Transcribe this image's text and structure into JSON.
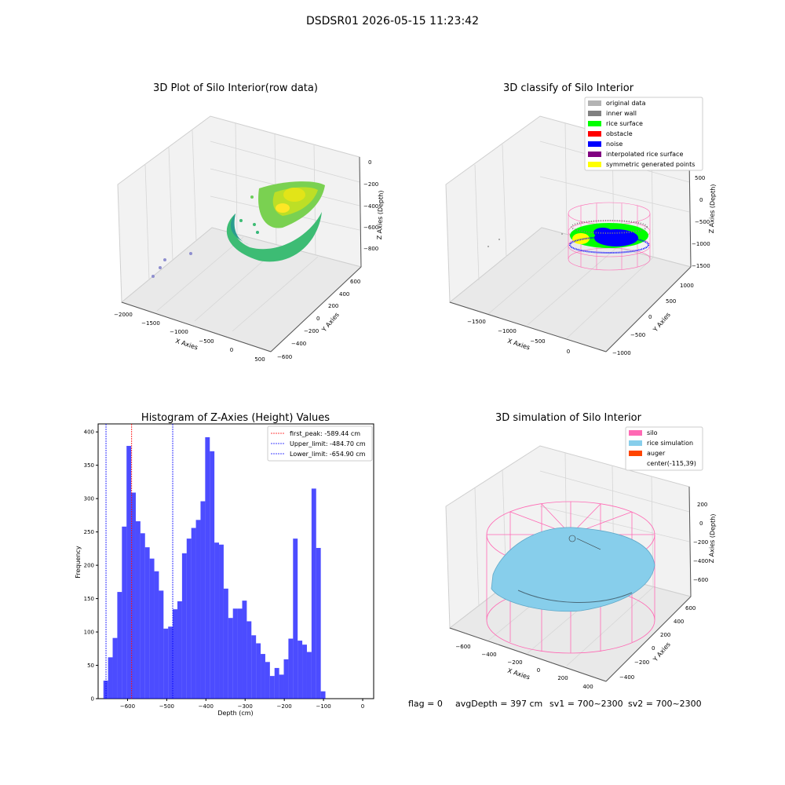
{
  "suptitle": "DSDSR01 2026-05-15 11:23:42",
  "footer": {
    "flag": "flag = 0",
    "avg_depth": "avgDepth = 397 cm",
    "sv1": "sv1 = 700~2300",
    "sv2": "sv2 = 700~2300"
  },
  "colors": {
    "bar": "#0000ff",
    "first_peak": "#ff0000",
    "limit": "#0000ff",
    "silo": "#ff69b4",
    "rice": "#87ceeb",
    "auger": "#ff4500",
    "pane": "#f2f2f2",
    "grid": "#d6d6d6"
  },
  "plot1": {
    "title": "3D Plot of Silo Interior(row data)",
    "xlabel": "X Axies",
    "ylabel": "Y Axies",
    "zlabel": "Z Axies (Depth)",
    "x_ticks": [
      "−2000",
      "−1500",
      "−1000",
      "−500",
      "0",
      "500"
    ],
    "y_ticks": [
      "−600",
      "−400",
      "−200",
      "0",
      "200",
      "400",
      "600"
    ],
    "z_ticks": [
      "0",
      "−200",
      "−400",
      "−600",
      "−800"
    ]
  },
  "plot2": {
    "title": "3D classify of Silo Interior",
    "xlabel": "X Axies",
    "ylabel": "Y Axies",
    "zlabel": "Z Axies (Depth)",
    "x_ticks": [
      "−1500",
      "−1000",
      "−500",
      "0"
    ],
    "y_ticks": [
      "−1000",
      "−500",
      "0",
      "500",
      "1000"
    ],
    "z_ticks": [
      "500",
      "0",
      "−500",
      "−1000",
      "−1500"
    ],
    "legend": [
      {
        "label": "original data",
        "color": "#b3b3b3"
      },
      {
        "label": "inner wall",
        "color": "#808080"
      },
      {
        "label": "rice surface",
        "color": "#00ff00"
      },
      {
        "label": "obstacle",
        "color": "#ff0000"
      },
      {
        "label": "noise",
        "color": "#0000ff"
      },
      {
        "label": "interpolated rice surface",
        "color": "#800080"
      },
      {
        "label": "symmetric generated points",
        "color": "#ffff00"
      }
    ]
  },
  "plot4": {
    "title": "3D simulation of Silo Interior",
    "xlabel": "X Axies",
    "ylabel": "Y Axies",
    "zlabel": "Z Axies (Depth)",
    "x_ticks": [
      "−600",
      "−400",
      "−200",
      "0",
      "200",
      "400"
    ],
    "y_ticks": [
      "−400",
      "−200",
      "0",
      "200",
      "400",
      "600"
    ],
    "z_ticks": [
      "200",
      "0",
      "−200",
      "−400",
      "−600"
    ],
    "legend": [
      {
        "label": "silo",
        "color": "#ff69b4"
      },
      {
        "label": "rice simulation",
        "color": "#87ceeb"
      },
      {
        "label": "auger",
        "color": "#ff4500"
      },
      {
        "label": "center(-115,39)",
        "color": ""
      }
    ]
  },
  "chart_data": {
    "type": "bar",
    "title": "Histogram of Z-Axies (Height) Values",
    "xlabel": "Depth (cm)",
    "ylabel": "Frequency",
    "xlim": [
      -675,
      28
    ],
    "ylim": [
      0,
      412
    ],
    "x_ticks": [
      -600,
      -500,
      -400,
      -300,
      -200,
      -100,
      0
    ],
    "y_ticks": [
      0,
      50,
      100,
      150,
      200,
      250,
      300,
      350,
      400
    ],
    "bin_start": -661.5,
    "bin_width": 11.8,
    "values": [
      27,
      62,
      91,
      160,
      258,
      379,
      309,
      266,
      248,
      227,
      210,
      191,
      162,
      105,
      108,
      134,
      146,
      218,
      240,
      256,
      268,
      296,
      392,
      371,
      234,
      231,
      165,
      121,
      135,
      135,
      147,
      116,
      95,
      83,
      67,
      55,
      34,
      46,
      36,
      59,
      90,
      240,
      87,
      81,
      70,
      315,
      226,
      11
    ],
    "vlines": [
      {
        "label": "first_peak: -589.44 cm",
        "x": -589.44,
        "color": "red"
      },
      {
        "label": "Upper_limit: -484.70 cm",
        "x": -484.7,
        "color": "blue"
      },
      {
        "label": "Lower_limit: -654.90 cm",
        "x": -654.9,
        "color": "blue"
      }
    ],
    "legend_position": "upper right"
  }
}
